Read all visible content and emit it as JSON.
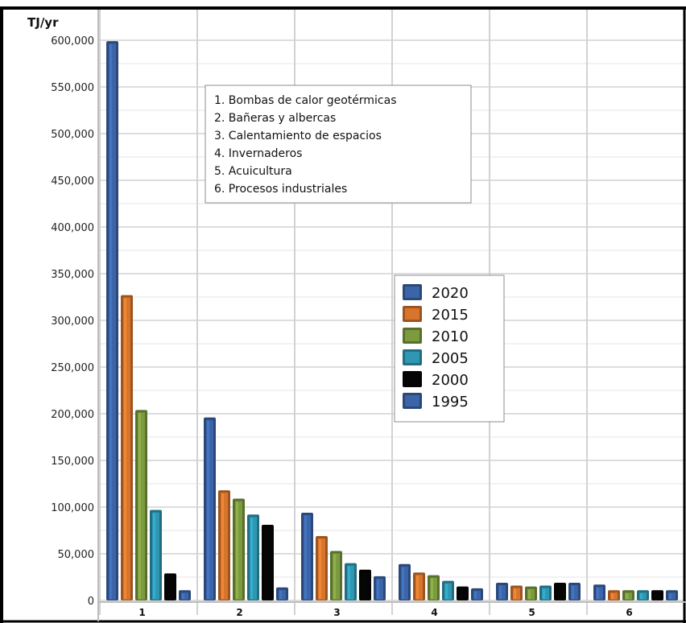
{
  "chart_data": {
    "type": "bar",
    "ylabel": "TJ/yr",
    "ylim": [
      0,
      600000
    ],
    "ytick_labels": [
      "600,000",
      "550,000",
      "500,000",
      "450,000",
      "400,000",
      "350,000",
      "300,000",
      "250,000",
      "200,000",
      "150,000",
      "100,000",
      "50,000",
      "0"
    ],
    "categories": [
      "1",
      "2",
      "3",
      "4",
      "5",
      "6"
    ],
    "grid": true,
    "legend_position": "center-right",
    "notes": [
      "1. Bombas de calor geotérmicas",
      "2. Bañeras y albercas",
      "3. Calentamiento de espacios",
      "4. Invernaderos",
      "5. Acuicultura",
      "6. Procesos industriales"
    ],
    "series": [
      {
        "name": "2020",
        "color": "#3b65a8",
        "values": [
          599000,
          196000,
          94000,
          39000,
          19000,
          17000
        ]
      },
      {
        "name": "2015",
        "color": "#d8752d",
        "values": [
          327000,
          118000,
          69000,
          30000,
          16000,
          11000
        ]
      },
      {
        "name": "2010",
        "color": "#7c9a3f",
        "values": [
          204000,
          109000,
          53000,
          27000,
          15000,
          11000
        ]
      },
      {
        "name": "2005",
        "color": "#2f97b2",
        "values": [
          97000,
          92000,
          40000,
          21000,
          16000,
          11000
        ]
      },
      {
        "name": "2000",
        "color": "#050505",
        "values": [
          29000,
          81000,
          33000,
          15000,
          19000,
          11000
        ]
      },
      {
        "name": "1995",
        "color": "#3b65a8",
        "values": [
          11000,
          14000,
          26000,
          13000,
          19000,
          11000
        ]
      }
    ]
  }
}
